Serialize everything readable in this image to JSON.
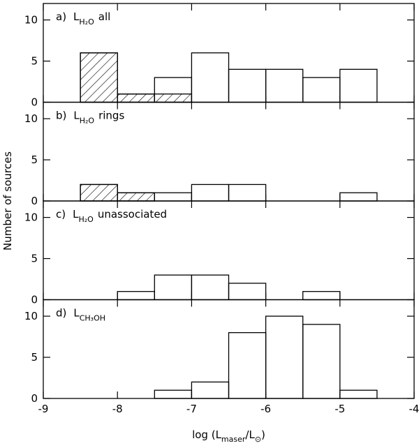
{
  "y_label": "Number of sources",
  "chart_data": [
    {
      "type": "histogram",
      "label": {
        "letter": "a)",
        "symbol": "L",
        "subscript": "H₂O",
        "text": "all"
      },
      "bins": [
        -8.5,
        -8,
        -7.5,
        -7,
        -6.5,
        -6,
        -5.5,
        -5,
        -4.5
      ],
      "series": [
        {
          "values": [
            6,
            1,
            3,
            6,
            4,
            4,
            3,
            4
          ],
          "hatch": false
        },
        {
          "values": [
            6,
            1,
            1,
            0,
            0,
            0,
            0,
            0
          ],
          "hatch": true
        }
      ],
      "xlim": [
        -9,
        -4
      ],
      "xticks": [
        -9,
        -8,
        -7,
        -6,
        -5,
        -4
      ],
      "ylim": [
        0,
        12
      ],
      "yticks": [
        0,
        5,
        10
      ]
    },
    {
      "type": "histogram",
      "label": {
        "letter": "b)",
        "symbol": "L",
        "subscript": "H₂O",
        "text": "rings"
      },
      "bins": [
        -8.5,
        -8,
        -7.5,
        -7,
        -6.5,
        -6,
        -5.5,
        -5,
        -4.5
      ],
      "series": [
        {
          "values": [
            2,
            1,
            1,
            2,
            2,
            0,
            0,
            1
          ],
          "hatch": false
        },
        {
          "values": [
            2,
            1,
            0,
            0,
            0,
            0,
            0,
            0
          ],
          "hatch": true
        }
      ],
      "xlim": [
        -9,
        -4
      ],
      "xticks": [
        -9,
        -8,
        -7,
        -6,
        -5,
        -4
      ],
      "ylim": [
        0,
        12
      ],
      "yticks": [
        0,
        5,
        10
      ]
    },
    {
      "type": "histogram",
      "label": {
        "letter": "c)",
        "symbol": "L",
        "subscript": "H₂O",
        "text": "unassociated"
      },
      "bins": [
        -8.5,
        -8,
        -7.5,
        -7,
        -6.5,
        -6,
        -5.5,
        -5,
        -4.5
      ],
      "series": [
        {
          "values": [
            0,
            1,
            3,
            3,
            2,
            0,
            1,
            0
          ],
          "hatch": false
        }
      ],
      "xlim": [
        -9,
        -4
      ],
      "xticks": [
        -9,
        -8,
        -7,
        -6,
        -5,
        -4
      ],
      "ylim": [
        0,
        12
      ],
      "yticks": [
        0,
        5,
        10
      ]
    },
    {
      "type": "histogram",
      "label": {
        "letter": "d)",
        "symbol": "L",
        "subscript": "CH₃OH"
      },
      "bins": [
        -8.5,
        -8,
        -7.5,
        -7,
        -6.5,
        -6,
        -5.5,
        -5,
        -4.5
      ],
      "series": [
        {
          "values": [
            0,
            0,
            1,
            2,
            8,
            10,
            9,
            1
          ],
          "hatch": false
        }
      ],
      "xlim": [
        -9,
        -4
      ],
      "xticks": [
        -9,
        -8,
        -7,
        -6,
        -5,
        -4
      ],
      "ylim": [
        0,
        12
      ],
      "yticks": [
        0,
        5,
        10
      ],
      "x_label": [
        "log (L",
        "maser",
        "/L",
        "⊙",
        ")"
      ]
    }
  ]
}
